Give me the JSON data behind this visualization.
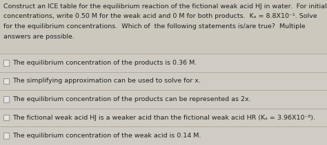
{
  "bg_top": "#ccc8be",
  "bg_options": "#d0ccc3",
  "title_text_lines": [
    "Construct an ICE table for the equilibrium reaction of the fictional weak acid HJ in water.  For initial",
    "concentrations, write 0.50 M for the weak acid and 0 M for both products.  Kₐ = 8.8X10⁻¹. Solve",
    "for the equilibrium concentrations.  Which of  the following statements is/are true?  Multiple",
    "answers are possible."
  ],
  "options": [
    "The equilibrium concentration of the products is 0.36 M.",
    "The simplifying approximation can be used to solve for x.",
    "The equilibrium concentration of the products can be represented as 2x.",
    "The fictional weak acid HJ is a weaker acid than the fictional weak acid HR (Kₐ = 3.96X10⁻⁸).",
    "The equilibrium concentration of the weak acid is 0.14 M."
  ],
  "text_color": "#222222",
  "divider_color": "#aaa49a",
  "checkbox_color": "#999999",
  "checkbox_face": "#e8e6e2",
  "title_fontsize": 6.8,
  "option_fontsize": 6.8,
  "fig_width": 4.74,
  "fig_height": 2.11,
  "dpi": 100
}
